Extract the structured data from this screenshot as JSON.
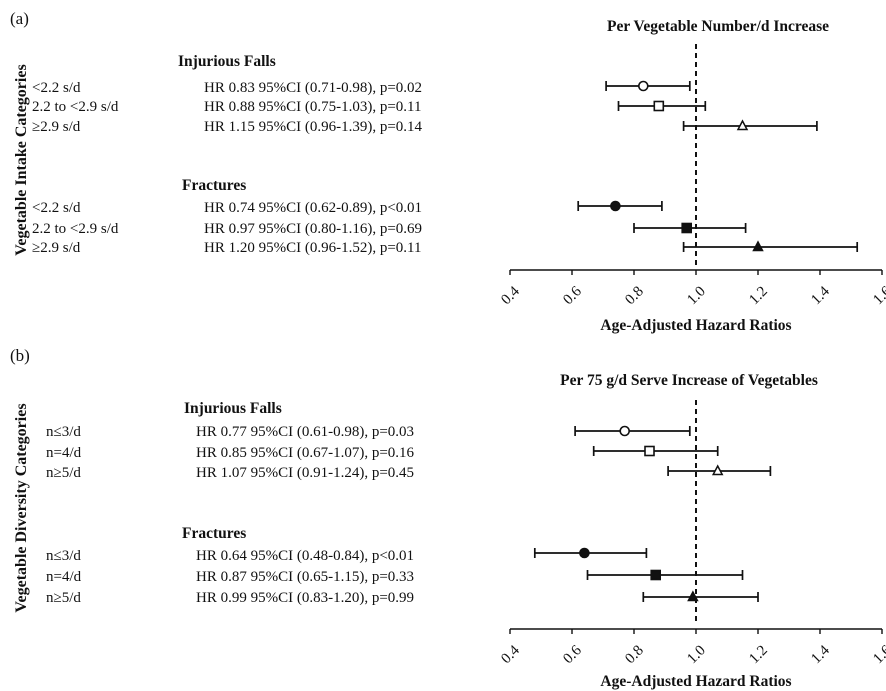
{
  "chart_data": [
    {
      "type": "forest",
      "panel_label": "(a)",
      "title": "Per Vegetable Number/d Increase",
      "ylabel": "Vegetable Intake Categories",
      "xlabel": "Age-Adjusted Hazard Ratios",
      "xlim": [
        0.4,
        1.6
      ],
      "xticks": [
        "0.4",
        "0.6",
        "0.8",
        "1.0",
        "1.2",
        "1.4",
        "1.6"
      ],
      "reference_line": 1.0,
      "groups": [
        {
          "name": "Injurious Falls",
          "rows": [
            {
              "label": "<2.2 s/d",
              "text": "HR 0.83 95%CI (0.71-0.98), p=0.02",
              "hr": 0.83,
              "lo": 0.71,
              "hi": 0.98,
              "marker": "circle-open"
            },
            {
              "label": "2.2 to <2.9 s/d",
              "text": "HR 0.88 95%CI (0.75-1.03), p=0.11",
              "hr": 0.88,
              "lo": 0.75,
              "hi": 1.03,
              "marker": "square-open"
            },
            {
              "label": "≥2.9 s/d",
              "text": "HR 1.15 95%CI (0.96-1.39), p=0.14",
              "hr": 1.15,
              "lo": 0.96,
              "hi": 1.39,
              "marker": "triangle-open"
            }
          ]
        },
        {
          "name": "Fractures",
          "rows": [
            {
              "label": "<2.2 s/d",
              "text": "HR 0.74 95%CI (0.62-0.89), p<0.01",
              "hr": 0.74,
              "lo": 0.62,
              "hi": 0.89,
              "marker": "circle-filled"
            },
            {
              "label": "2.2 to <2.9 s/d",
              "text": "HR 0.97 95%CI (0.80-1.16), p=0.69",
              "hr": 0.97,
              "lo": 0.8,
              "hi": 1.16,
              "marker": "square-filled"
            },
            {
              "label": "≥2.9 s/d",
              "text": "HR 1.20 95%CI (0.96-1.52), p=0.11",
              "hr": 1.2,
              "lo": 0.96,
              "hi": 1.52,
              "marker": "triangle-filled"
            }
          ]
        }
      ]
    },
    {
      "type": "forest",
      "panel_label": "(b)",
      "title": "Per 75 g/d Serve Increase of Vegetables",
      "ylabel": "Vegetable Diversity Categories",
      "xlabel": "Age-Adjusted Hazard Ratios",
      "xlim": [
        0.4,
        1.6
      ],
      "xticks": [
        "0.4",
        "0.6",
        "0.8",
        "1.0",
        "1.2",
        "1.4",
        "1.6"
      ],
      "reference_line": 1.0,
      "groups": [
        {
          "name": "Injurious Falls",
          "rows": [
            {
              "label": "n≤3/d",
              "text": "HR 0.77 95%CI (0.61-0.98), p=0.03",
              "hr": 0.77,
              "lo": 0.61,
              "hi": 0.98,
              "marker": "circle-open"
            },
            {
              "label": "n=4/d",
              "text": "HR 0.85 95%CI (0.67-1.07), p=0.16",
              "hr": 0.85,
              "lo": 0.67,
              "hi": 1.07,
              "marker": "square-open"
            },
            {
              "label": "n≥5/d",
              "text": "HR 1.07 95%CI (0.91-1.24), p=0.45",
              "hr": 1.07,
              "lo": 0.91,
              "hi": 1.24,
              "marker": "triangle-open"
            }
          ]
        },
        {
          "name": "Fractures",
          "rows": [
            {
              "label": "n≤3/d",
              "text": "HR 0.64 95%CI (0.48-0.84), p<0.01",
              "hr": 0.64,
              "lo": 0.48,
              "hi": 0.84,
              "marker": "circle-filled"
            },
            {
              "label": "n=4/d",
              "text": "HR 0.87 95%CI (0.65-1.15), p=0.33",
              "hr": 0.87,
              "lo": 0.65,
              "hi": 1.15,
              "marker": "square-filled"
            },
            {
              "label": "n≥5/d",
              "text": "HR 0.99 95%CI (0.83-1.20), p=0.99",
              "hr": 0.99,
              "lo": 0.83,
              "hi": 1.2,
              "marker": "triangle-filled"
            }
          ]
        }
      ]
    }
  ]
}
